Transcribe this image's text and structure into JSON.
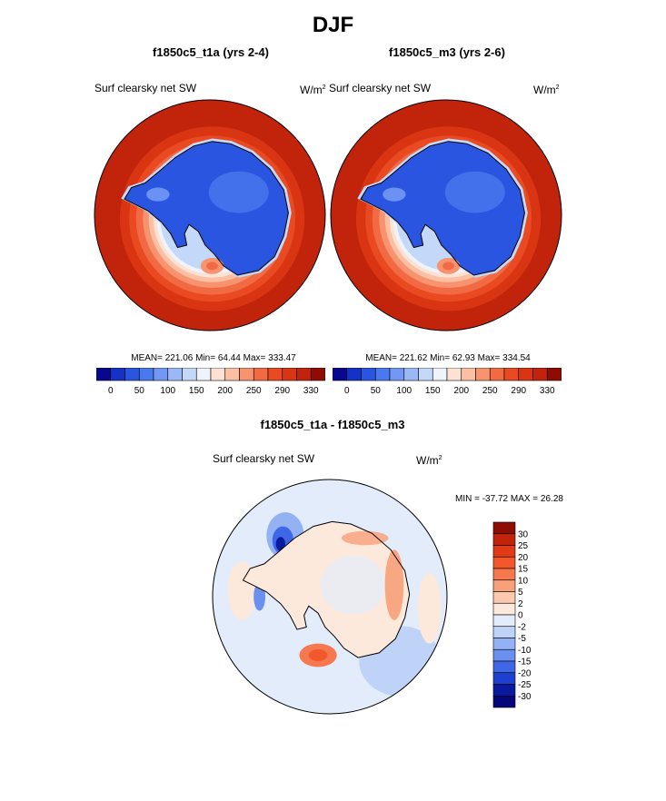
{
  "page": {
    "title": "DJF"
  },
  "panels": [
    {
      "title": "f1850c5_t1a (yrs 2-4)",
      "var_label": "Surf clearsky net SW",
      "units": "W/m",
      "units_sup": "2",
      "stats": "MEAN= 221.06  Min=  64.44  Max= 333.47"
    },
    {
      "title": "f1850c5_m3 (yrs 2-6)",
      "var_label": "Surf clearsky net SW",
      "units": "W/m",
      "units_sup": "2",
      "stats": "MEAN= 221.62  Min=  62.93  Max= 334.54"
    }
  ],
  "diff_panel": {
    "title": "f1850c5_t1a - f1850c5_m3",
    "var_label": "Surf clearsky net SW",
    "units": "W/m",
    "units_sup": "2",
    "stats": "MIN = -37.72 MAX =  26.28"
  },
  "chart_data": [
    {
      "type": "heatmap",
      "projection": "south-polar-stereographic",
      "title": "f1850c5_t1a (yrs 2-4)",
      "variable": "Surf clearsky net SW",
      "units": "W/m2",
      "mean": 221.06,
      "min": 64.44,
      "max": 333.47,
      "colorbar": {
        "tick_labels": [
          "0",
          "50",
          "100",
          "150",
          "200",
          "250",
          "290",
          "330"
        ],
        "colors": [
          "#08088f",
          "#1532c6",
          "#2a55e0",
          "#4a78ef",
          "#7298f4",
          "#9bb8f6",
          "#c4d8f9",
          "#eef3fc",
          "#fde2d4",
          "#fbbfa3",
          "#f7936f",
          "#f26a43",
          "#e94a22",
          "#d93513",
          "#c2230b",
          "#8f0c02"
        ]
      }
    },
    {
      "type": "heatmap",
      "projection": "south-polar-stereographic",
      "title": "f1850c5_m3 (yrs 2-6)",
      "variable": "Surf clearsky net SW",
      "units": "W/m2",
      "mean": 221.62,
      "min": 62.93,
      "max": 334.54,
      "colorbar": {
        "tick_labels": [
          "0",
          "50",
          "100",
          "150",
          "200",
          "250",
          "290",
          "330"
        ],
        "colors": [
          "#08088f",
          "#1532c6",
          "#2a55e0",
          "#4a78ef",
          "#7298f4",
          "#9bb8f6",
          "#c4d8f9",
          "#eef3fc",
          "#fde2d4",
          "#fbbfa3",
          "#f7936f",
          "#f26a43",
          "#e94a22",
          "#d93513",
          "#c2230b",
          "#8f0c02"
        ]
      }
    },
    {
      "type": "heatmap",
      "projection": "south-polar-stereographic",
      "title": "f1850c5_t1a - f1850c5_m3",
      "variable": "Surf clearsky net SW",
      "units": "W/m2",
      "min": -37.72,
      "max": 26.28,
      "colorbar": {
        "tick_labels": [
          "30",
          "25",
          "20",
          "15",
          "10",
          "5",
          "2",
          "0",
          "-2",
          "-5",
          "-10",
          "-15",
          "-20",
          "-25",
          "-30"
        ],
        "colors": [
          "#8f0c02",
          "#c2230b",
          "#e23a16",
          "#f2582c",
          "#f5784e",
          "#f7a079",
          "#fbc9ae",
          "#fde8dc",
          "#e3ecfb",
          "#bfd2f8",
          "#93b1f3",
          "#6c90ef",
          "#3f66e6",
          "#1e3fcf",
          "#0a1a9f",
          "#06067a"
        ]
      }
    }
  ]
}
